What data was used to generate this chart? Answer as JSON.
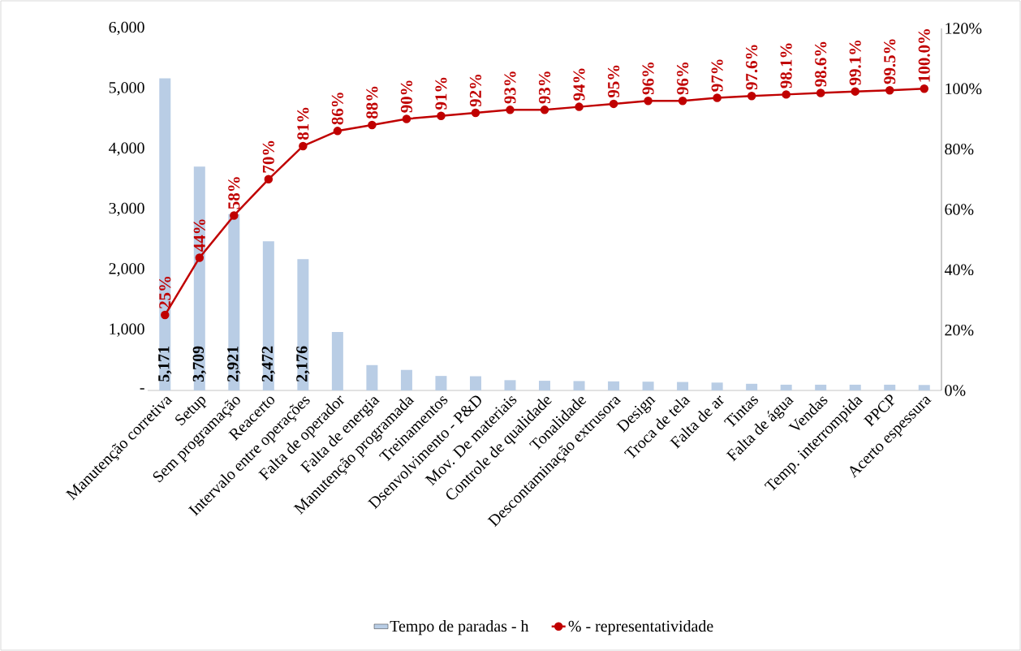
{
  "chart_data": {
    "type": "bar",
    "categories": [
      "Manutenção corretiva",
      "Setup",
      "Sem programação",
      "Reacerto",
      "Intervalo entre operações",
      "Falta de operador",
      "Falta de energia",
      "Manutenção programada",
      "Treinamentos",
      "Dsenvolvimento - P&D",
      "Mov. De materiais",
      "Controle de qualidade",
      "Tonalidade",
      "Descontaminação extrusora",
      "Design",
      "Troca de tela",
      "Falta de ar",
      "Tintas",
      "Falta de água",
      "Vendas",
      "Temp. interrompida",
      "PPCP",
      "Acerto espessura"
    ],
    "series": [
      {
        "name": "Tempo de paradas - h",
        "color": "#b9cde5",
        "values": [
          5171,
          3709,
          2921,
          2472,
          2176,
          970,
          420,
          340,
          240,
          235,
          170,
          160,
          155,
          150,
          145,
          140,
          130,
          110,
          95,
          95,
          95,
          95,
          90
        ],
        "value_labels": [
          "5,171",
          "3,709",
          "2,921",
          "2,472",
          "2,176",
          null,
          null,
          null,
          null,
          null,
          null,
          null,
          null,
          null,
          null,
          null,
          null,
          null,
          null,
          null,
          null,
          null,
          null
        ]
      },
      {
        "name": "% - representatividade",
        "type": "line",
        "axis": "y2",
        "color": "#c00000",
        "values": [
          25,
          44,
          58,
          70,
          81,
          86,
          88,
          90,
          91,
          92,
          93,
          93,
          94,
          95,
          96,
          96,
          97,
          97.6,
          98.1,
          98.6,
          99.1,
          99.5,
          100
        ],
        "value_labels": [
          "25%",
          "44%",
          "58%",
          "70%",
          "81%",
          "86%",
          "88%",
          "90%",
          "91%",
          "92%",
          "93%",
          "93%",
          "94%",
          "95%",
          "96%",
          "96%",
          "97%",
          "97.6%",
          "98.1%",
          "98.6%",
          "99.1%",
          "99.5%",
          "100.0%"
        ]
      }
    ],
    "ylim": [
      0,
      6000
    ],
    "yticks": [
      {
        "value": 0,
        "label": "-"
      },
      {
        "value": 1000,
        "label": "1,000"
      },
      {
        "value": 2000,
        "label": "2,000"
      },
      {
        "value": 3000,
        "label": "3,000"
      },
      {
        "value": 4000,
        "label": "4,000"
      },
      {
        "value": 5000,
        "label": "5,000"
      },
      {
        "value": 6000,
        "label": "6,000"
      }
    ],
    "y2lim": [
      0,
      120
    ],
    "y2ticks": [
      {
        "value": 0,
        "label": "0%"
      },
      {
        "value": 20,
        "label": "20%"
      },
      {
        "value": 40,
        "label": "40%"
      },
      {
        "value": 60,
        "label": "60%"
      },
      {
        "value": 80,
        "label": "80%"
      },
      {
        "value": 100,
        "label": "100%"
      },
      {
        "value": 120,
        "label": "120%"
      }
    ],
    "marker": "circle",
    "grid": false,
    "legend": "bottom"
  }
}
